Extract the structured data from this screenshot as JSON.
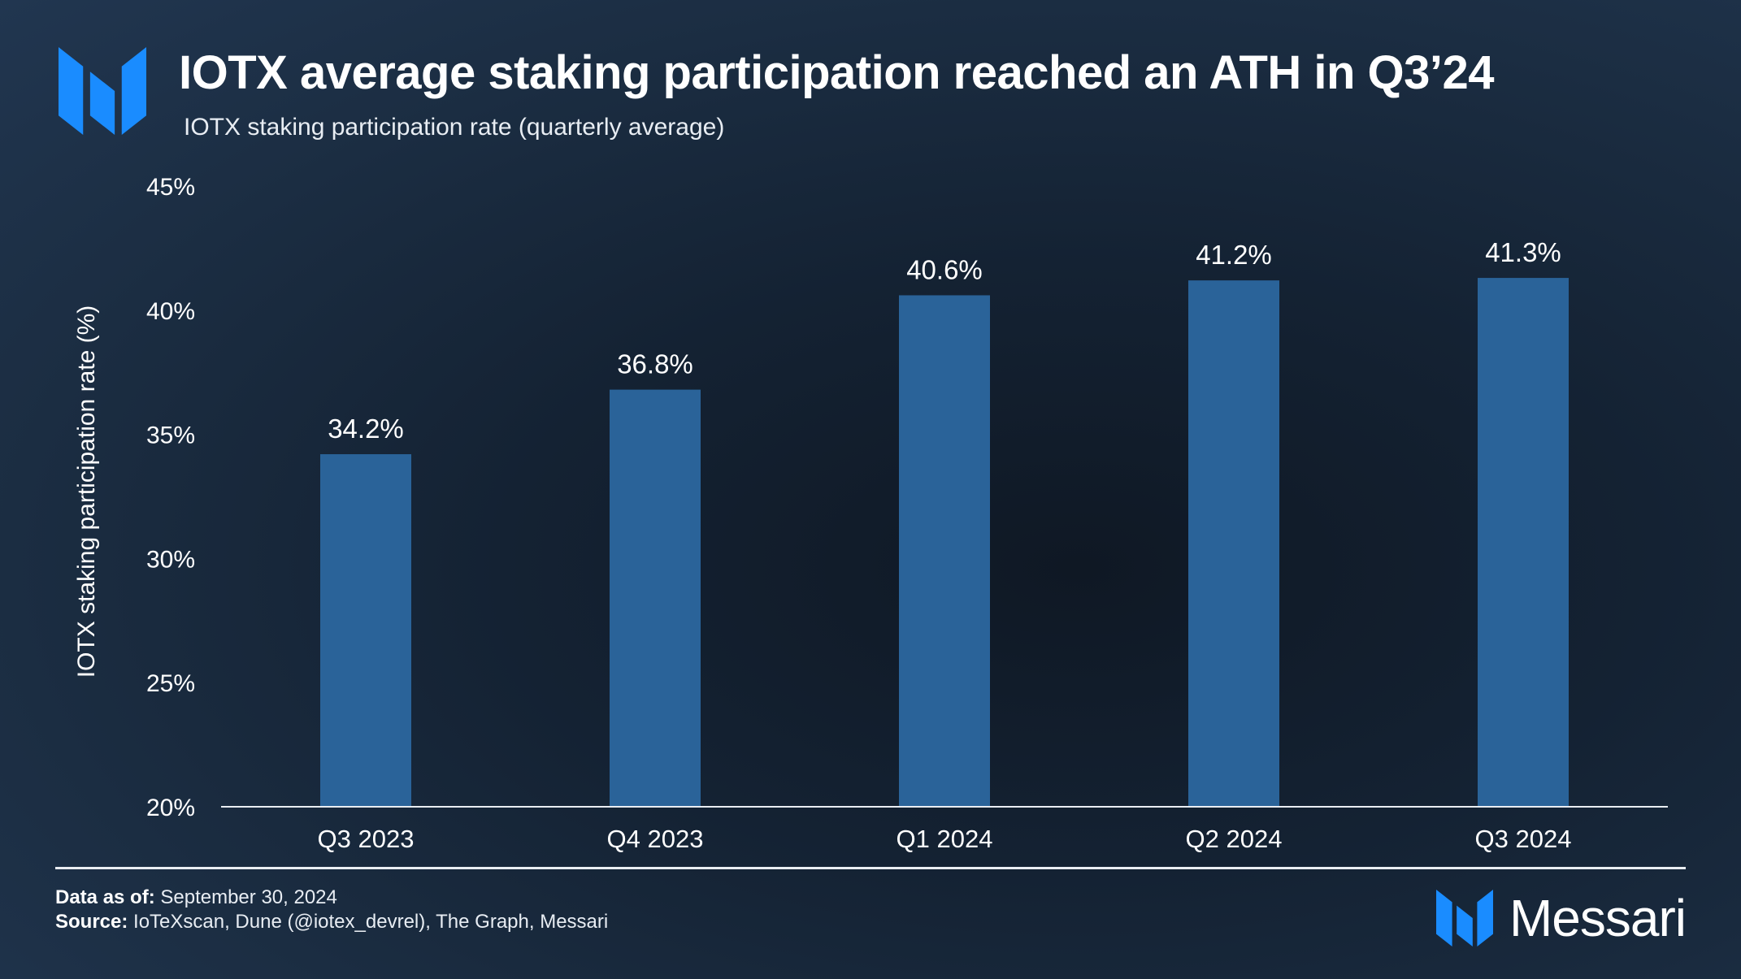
{
  "header": {
    "title": "IOTX average staking participation reached an ATH in Q3’24",
    "subtitle": "IOTX staking participation rate (quarterly average)",
    "logo_icon": "messari-logo-icon"
  },
  "chart_data": {
    "type": "bar",
    "title": "IOTX average staking participation reached an ATH in Q3’24",
    "subtitle": "IOTX staking participation rate (quarterly average)",
    "xlabel": "",
    "ylabel": "IOTX staking participation rate (%)",
    "categories": [
      "Q3 2023",
      "Q4 2023",
      "Q1 2024",
      "Q2 2024",
      "Q3 2024"
    ],
    "values": [
      34.2,
      36.8,
      40.6,
      41.2,
      41.3
    ],
    "data_labels": [
      "34.2%",
      "36.8%",
      "40.6%",
      "41.2%",
      "41.3%"
    ],
    "ylim": [
      20,
      45
    ],
    "yticks": [
      20,
      25,
      30,
      35,
      40,
      45
    ],
    "ytick_labels": [
      "20%",
      "25%",
      "30%",
      "35%",
      "40%",
      "45%"
    ],
    "bar_color": "#2a6399",
    "grid": false,
    "legend": "none"
  },
  "footer": {
    "data_as_of_label": "Data as of:",
    "data_as_of_value": "September 30, 2024",
    "source_label": "Source:",
    "source_value": "IoTeXscan, Dune (@iotex_devrel), The Graph, Messari",
    "brand_name": "Messari"
  },
  "colors": {
    "accent": "#1a8cff",
    "bar": "#2a6399",
    "text": "#ffffff",
    "background": "#15202d"
  }
}
